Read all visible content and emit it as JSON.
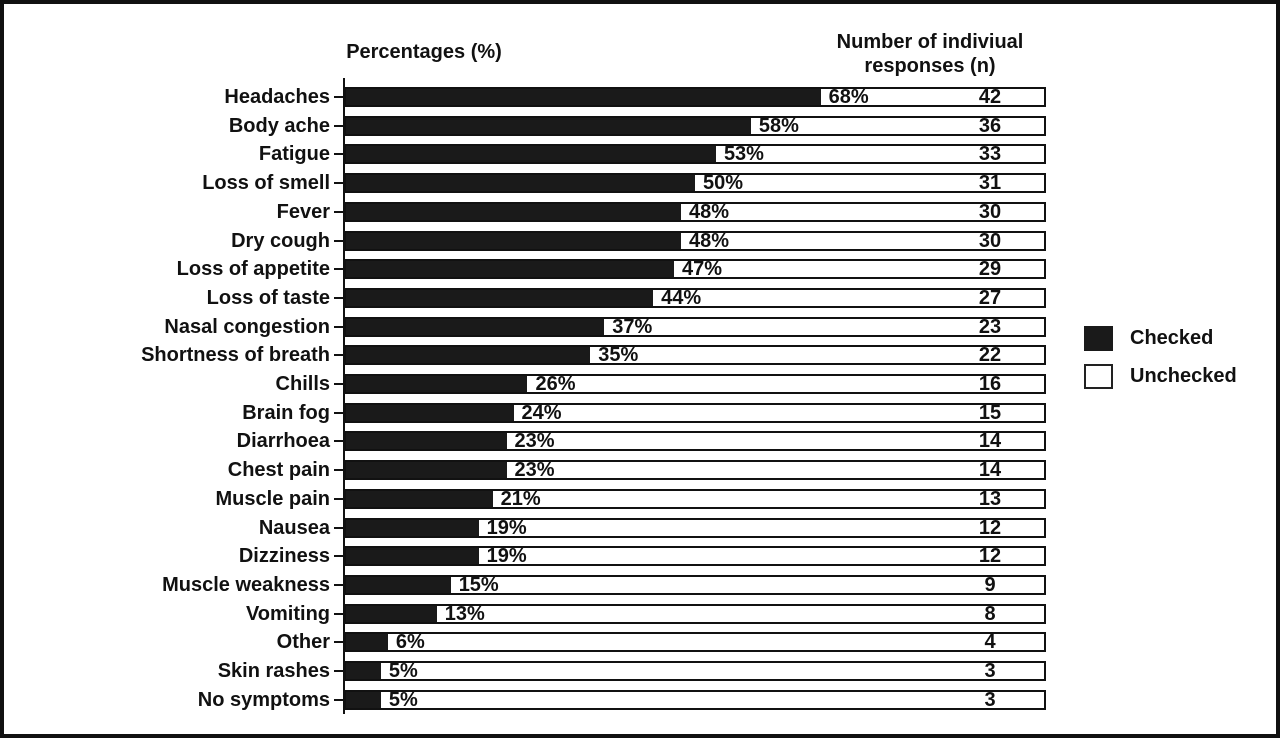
{
  "header": {
    "left_title": "Percentages (%)",
    "right_title_line1": "Number of indiviual",
    "right_title_line2": "responses (n)"
  },
  "legend": {
    "items": [
      {
        "label": "Checked",
        "swatch": "filled",
        "color": "#1a1a1a"
      },
      {
        "label": "Unchecked",
        "swatch": "outline",
        "color": "#ffffff"
      }
    ]
  },
  "colors": {
    "checked_fill": "#1a1a1a",
    "unchecked_fill": "#ffffff",
    "frame_border": "#111111"
  },
  "chart_data": {
    "type": "bar",
    "orientation": "horizontal",
    "stacked_to_100_percent": true,
    "percent_axis_title": "Percentages (%)",
    "count_axis_title": "Number of indiviual responses (n)",
    "legend_entries": [
      "Checked",
      "Unchecked"
    ],
    "legend_position": "right",
    "xlim": [
      0,
      100
    ],
    "grid": false,
    "categories": [
      "Headaches",
      "Body ache",
      "Fatigue",
      "Loss of smell",
      "Fever",
      "Dry cough",
      "Loss of appetite",
      "Loss of taste",
      "Nasal congestion",
      "Shortness of breath",
      "Chills",
      "Brain fog",
      "Diarrhoea",
      "Chest pain",
      "Muscle pain",
      "Nausea",
      "Dizziness",
      "Muscle weakness",
      "Vomiting",
      "Other",
      "Skin rashes",
      "No symptoms"
    ],
    "series": [
      {
        "name": "Checked (%)",
        "values": [
          68,
          58,
          53,
          50,
          48,
          48,
          47,
          44,
          37,
          35,
          26,
          24,
          23,
          23,
          21,
          19,
          19,
          15,
          13,
          6,
          5,
          5
        ]
      },
      {
        "name": "Number of indiviual responses (n)",
        "values": [
          42,
          36,
          33,
          31,
          30,
          30,
          29,
          27,
          23,
          22,
          16,
          15,
          14,
          14,
          13,
          12,
          12,
          9,
          8,
          4,
          3,
          3
        ]
      }
    ],
    "rows": [
      {
        "label": "Headaches",
        "pct": 68,
        "pct_label": "68%",
        "n": 42
      },
      {
        "label": "Body ache",
        "pct": 58,
        "pct_label": "58%",
        "n": 36
      },
      {
        "label": "Fatigue",
        "pct": 53,
        "pct_label": "53%",
        "n": 33
      },
      {
        "label": "Loss of smell",
        "pct": 50,
        "pct_label": "50%",
        "n": 31
      },
      {
        "label": "Fever",
        "pct": 48,
        "pct_label": "48%",
        "n": 30
      },
      {
        "label": "Dry cough",
        "pct": 48,
        "pct_label": "48%",
        "n": 30
      },
      {
        "label": "Loss of appetite",
        "pct": 47,
        "pct_label": "47%",
        "n": 29
      },
      {
        "label": "Loss of taste",
        "pct": 44,
        "pct_label": "44%",
        "n": 27
      },
      {
        "label": "Nasal congestion",
        "pct": 37,
        "pct_label": "37%",
        "n": 23
      },
      {
        "label": "Shortness of breath",
        "pct": 35,
        "pct_label": "35%",
        "n": 22
      },
      {
        "label": "Chills",
        "pct": 26,
        "pct_label": "26%",
        "n": 16
      },
      {
        "label": "Brain fog",
        "pct": 24,
        "pct_label": "24%",
        "n": 15
      },
      {
        "label": "Diarrhoea",
        "pct": 23,
        "pct_label": "23%",
        "n": 14
      },
      {
        "label": "Chest pain",
        "pct": 23,
        "pct_label": "23%",
        "n": 14
      },
      {
        "label": "Muscle pain",
        "pct": 21,
        "pct_label": "21%",
        "n": 13
      },
      {
        "label": "Nausea",
        "pct": 19,
        "pct_label": "19%",
        "n": 12
      },
      {
        "label": "Dizziness",
        "pct": 19,
        "pct_label": "19%",
        "n": 12
      },
      {
        "label": "Muscle weakness",
        "pct": 15,
        "pct_label": "15%",
        "n": 9
      },
      {
        "label": "Vomiting",
        "pct": 13,
        "pct_label": "13%",
        "n": 8
      },
      {
        "label": "Other",
        "pct": 6,
        "pct_label": "6%",
        "n": 4
      },
      {
        "label": "Skin rashes",
        "pct": 5,
        "pct_label": "5%",
        "n": 3
      },
      {
        "label": "No symptoms",
        "pct": 5,
        "pct_label": "5%",
        "n": 3
      }
    ]
  }
}
